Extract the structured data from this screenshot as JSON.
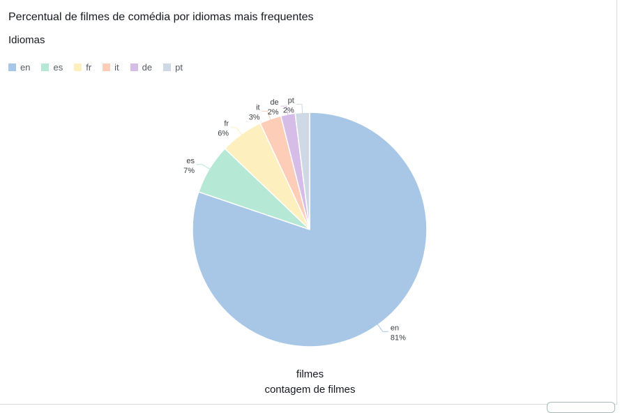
{
  "chart_title": "Percentual de filmes de comédia por idiomas mais frequentes",
  "legend_title": "Idiomas",
  "colors": {
    "en": "#a8c7e6",
    "es": "#b5e9d5",
    "fr": "#fdefbe",
    "it": "#fdcdb7",
    "de": "#d6bde8",
    "pt": "#cfd9e6"
  },
  "footer": {
    "measure": "filmes",
    "aggregation": "contagem de filmes"
  },
  "chart_data": {
    "type": "pie",
    "title": "Percentual de filmes de comédia por idiomas mais frequentes",
    "legend_title": "Idiomas",
    "legend_position": "top-left",
    "categories": [
      "en",
      "es",
      "fr",
      "it",
      "de",
      "pt"
    ],
    "values": [
      81,
      7,
      6,
      3,
      2,
      2
    ],
    "labels": [
      "81%",
      "7%",
      "6%",
      "3%",
      "2%",
      "2%"
    ]
  }
}
